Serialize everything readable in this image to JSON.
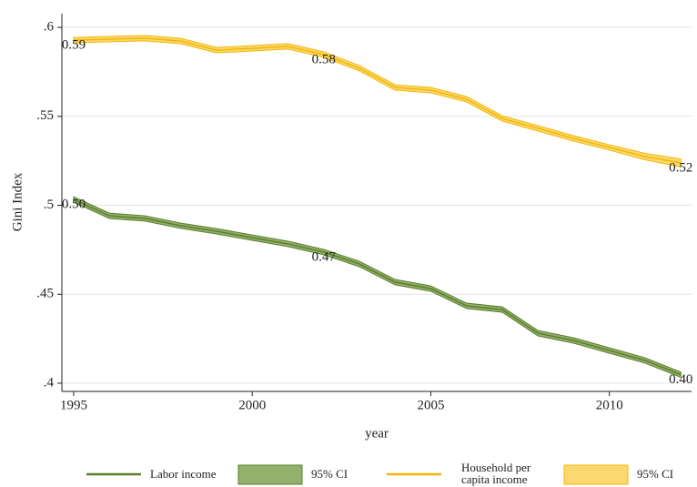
{
  "chart_data": {
    "type": "line",
    "y_label": "Gini Index",
    "x_label": "year",
    "x": [
      1995,
      1996,
      1997,
      1998,
      1999,
      2000,
      2001,
      2002,
      2003,
      2004,
      2005,
      2006,
      2007,
      2008,
      2009,
      2010,
      2011,
      2012
    ],
    "xlim": [
      1994.67,
      2012.3
    ],
    "xticks": [
      1995,
      2000,
      2005,
      2010
    ],
    "ylim": [
      0.3954,
      0.6077
    ],
    "yticks": [
      {
        "value": 0.6,
        "label": ".6"
      },
      {
        "value": 0.55,
        "label": ".55"
      },
      {
        "value": 0.5,
        "label": ".5"
      },
      {
        "value": 0.45,
        "label": ".45"
      },
      {
        "value": 0.4,
        "label": ".4"
      }
    ],
    "grid": true,
    "series": [
      {
        "name": "Labor income",
        "ci_name": "95% CI",
        "color": "#5b7f2b",
        "band_color": "#93b06c",
        "values": [
          0.5033,
          0.4941,
          0.4926,
          0.4885,
          0.4854,
          0.4818,
          0.4783,
          0.4737,
          0.467,
          0.4568,
          0.4532,
          0.4435,
          0.4414,
          0.4281,
          0.424,
          0.4184,
          0.4128,
          0.4048
        ],
        "lower": [
          0.5018,
          0.4926,
          0.4911,
          0.487,
          0.4839,
          0.4803,
          0.4768,
          0.4722,
          0.4655,
          0.4553,
          0.4517,
          0.442,
          0.4399,
          0.4266,
          0.4225,
          0.4169,
          0.4113,
          0.4033
        ],
        "upper": [
          0.5048,
          0.4956,
          0.4941,
          0.49,
          0.4869,
          0.4833,
          0.4798,
          0.4752,
          0.4685,
          0.4583,
          0.4547,
          0.445,
          0.4429,
          0.4296,
          0.4255,
          0.4199,
          0.4143,
          0.4063
        ],
        "value_labels": [
          "0.50",
          null,
          null,
          null,
          null,
          null,
          null,
          "0.47",
          null,
          null,
          null,
          null,
          null,
          null,
          null,
          null,
          null,
          "0.40"
        ]
      },
      {
        "name": "Household per capita income",
        "ci_name": "95% CI",
        "color": "#f2b705",
        "band_color": "#fbd970",
        "values": [
          0.5928,
          0.5934,
          0.5939,
          0.5923,
          0.5872,
          0.5882,
          0.5893,
          0.5847,
          0.577,
          0.5662,
          0.5647,
          0.5596,
          0.5488,
          0.5432,
          0.5376,
          0.5325,
          0.5274,
          0.5238
        ],
        "lower": [
          0.5913,
          0.5919,
          0.5924,
          0.5908,
          0.5857,
          0.5867,
          0.5878,
          0.5832,
          0.5755,
          0.5647,
          0.5632,
          0.5581,
          0.5473,
          0.5417,
          0.5361,
          0.531,
          0.5256,
          0.5215
        ],
        "upper": [
          0.5943,
          0.5949,
          0.5954,
          0.5938,
          0.5887,
          0.5897,
          0.5908,
          0.5862,
          0.5785,
          0.5677,
          0.5662,
          0.5611,
          0.5503,
          0.5447,
          0.5391,
          0.534,
          0.5292,
          0.5261
        ],
        "value_labels": [
          "0.59",
          null,
          null,
          null,
          null,
          null,
          null,
          "0.58",
          null,
          null,
          null,
          null,
          null,
          null,
          null,
          null,
          null,
          "0.52"
        ]
      }
    ]
  }
}
